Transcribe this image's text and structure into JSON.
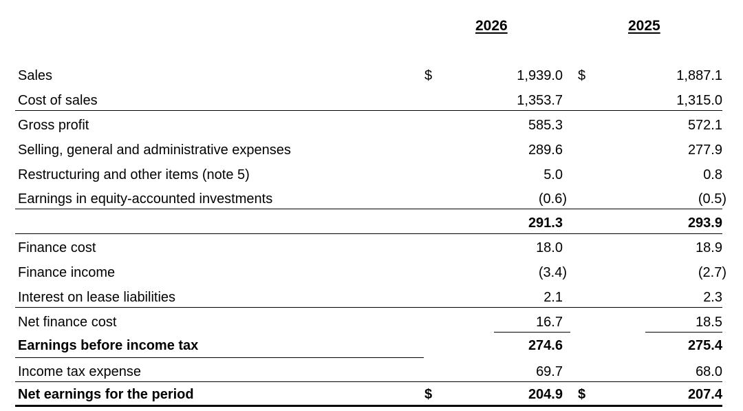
{
  "header": {
    "year_1": "2026",
    "year_2": "2025"
  },
  "currency_symbol": "$",
  "rows": [
    {
      "label": "Sales",
      "v2026": "1,939.0",
      "v2025": "1,887.1"
    },
    {
      "label": "Cost of sales",
      "v2026": "1,353.7",
      "v2025": "1,315.0"
    },
    {
      "label": "Gross profit",
      "v2026": "585.3",
      "v2025": "572.1"
    },
    {
      "label": "Selling, general and administrative expenses",
      "v2026": "289.6",
      "v2025": "277.9"
    },
    {
      "label": "Restructuring and other items (note 5)",
      "v2026": "5.0",
      "v2025": "0.8"
    },
    {
      "label": "Earnings in equity-accounted investments",
      "v2026": "(0.6)",
      "v2025": "(0.5)"
    },
    {
      "label": "",
      "v2026": "291.3",
      "v2025": "293.9"
    },
    {
      "label": "Finance cost",
      "v2026": "18.0",
      "v2025": "18.9"
    },
    {
      "label": "Finance income",
      "v2026": "(3.4)",
      "v2025": "(2.7)"
    },
    {
      "label": "Interest on lease liabilities",
      "v2026": "2.1",
      "v2025": "2.3"
    },
    {
      "label": "Net finance cost",
      "v2026": "16.7",
      "v2025": "18.5"
    },
    {
      "label": "Earnings before income tax",
      "v2026": "274.6",
      "v2025": "275.4"
    },
    {
      "label": "Income tax expense",
      "v2026": "69.7",
      "v2025": "68.0"
    },
    {
      "label": "Net earnings for the period",
      "v2026": "204.9",
      "v2025": "207.4"
    }
  ]
}
